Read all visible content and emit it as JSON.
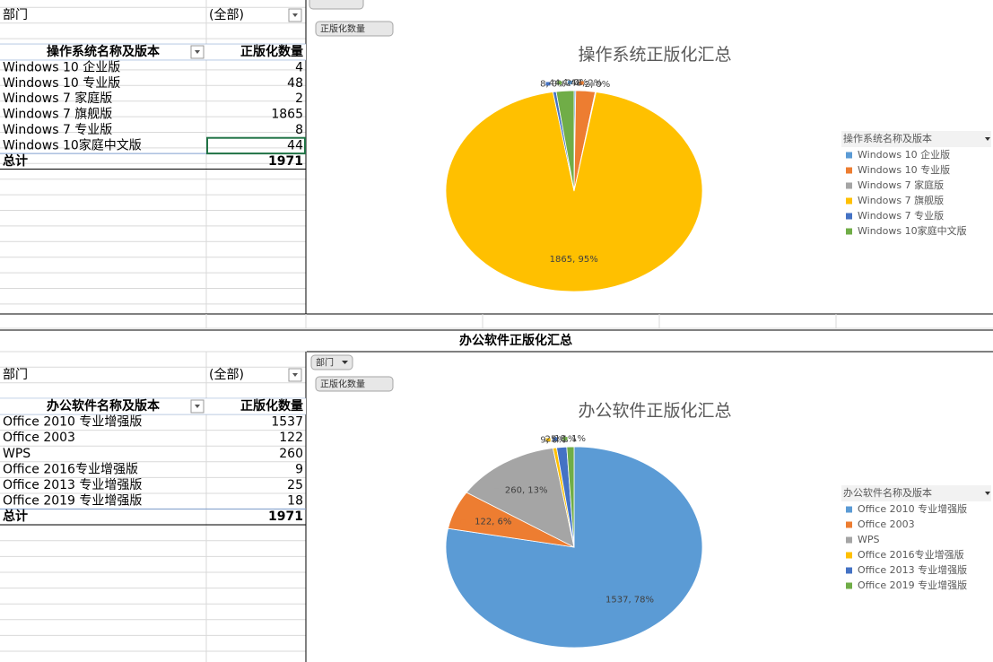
{
  "top_table": {
    "filter_label": "部门",
    "filter_value": "(全部)",
    "headers": [
      "操作系统名称及版本",
      "正版化数量"
    ],
    "rows": [
      [
        "Windows 10 企业版",
        4
      ],
      [
        "Windows 10 专业版",
        48
      ],
      [
        "Windows 7 家庭版",
        2
      ],
      [
        "Windows 7 旗舰版",
        1865
      ],
      [
        "Windows 7 专业版",
        8
      ],
      [
        "Windows 10家庭中文版",
        44
      ]
    ],
    "total": [
      "总计",
      1971
    ]
  },
  "section_title": "办公软件正版化汇总",
  "bottom_table": {
    "filter_label": "部门",
    "filter_value": "(全部)",
    "headers": [
      "办公软件名称及版本",
      "正版化数量"
    ],
    "rows": [
      [
        "Office 2010 专业增强版",
        1537
      ],
      [
        "Office 2003",
        122
      ],
      [
        "WPS",
        260
      ],
      [
        "Office 2016专业增强版",
        9
      ],
      [
        "Office 2013 专业增强版",
        25
      ],
      [
        "Office 2019 专业增强版",
        18
      ]
    ],
    "total": [
      "总计",
      1971
    ]
  },
  "chart_data": [
    {
      "type": "pie",
      "title": "操作系统正版化汇总",
      "value_button": "正版化数量",
      "legend_title": "操作系统名称及版本",
      "categories": [
        "Windows 10 企业版",
        "Windows 10 专业版",
        "Windows 7 家庭版",
        "Windows 7 旗舰版",
        "Windows 7 专业版",
        "Windows 10家庭中文版"
      ],
      "values": [
        4,
        48,
        2,
        1865,
        8,
        44
      ],
      "value_labels": [
        "4, 0%",
        "48, 2%",
        "2, 0%",
        "1865, 95%",
        "8, 0%",
        "44, 2%"
      ],
      "colors": [
        "#5b9bd5",
        "#ed7d31",
        "#a5a5a5",
        "#ffc000",
        "#4472c4",
        "#70ad47"
      ],
      "legend": "right"
    },
    {
      "type": "pie",
      "title": "办公软件正版化汇总",
      "filter_button": "部门",
      "value_button": "正版化数量",
      "legend_title": "办公软件名称及版本",
      "categories": [
        "Office 2010 专业增强版",
        "Office 2003",
        "WPS",
        "Office 2016专业增强版",
        "Office 2013 专业增强版",
        "Office 2019 专业增强版"
      ],
      "values": [
        1537,
        122,
        260,
        9,
        25,
        18
      ],
      "value_labels": [
        "1537, 78%",
        "122, 6%",
        "260, 13%",
        "9, 0%",
        "25, 1%",
        "18, 1%"
      ],
      "colors": [
        "#5b9bd5",
        "#ed7d31",
        "#a5a5a5",
        "#ffc000",
        "#4472c4",
        "#70ad47"
      ],
      "legend": "right"
    }
  ]
}
